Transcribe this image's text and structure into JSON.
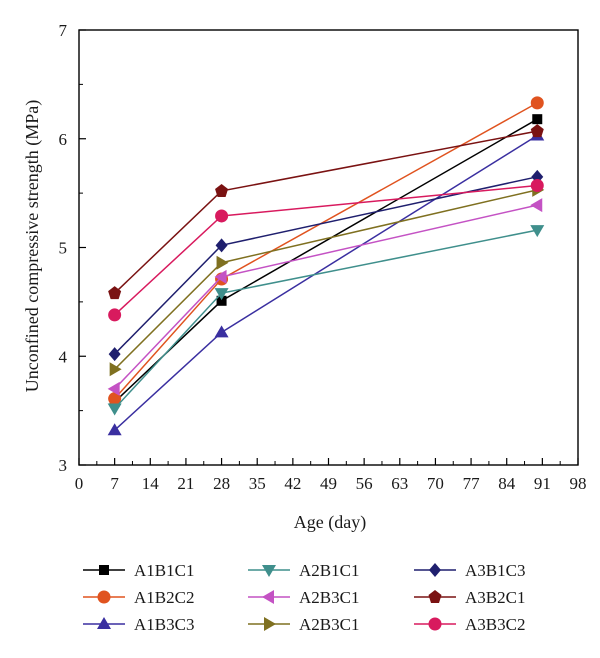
{
  "chart_data": {
    "type": "line",
    "title": "",
    "xlabel": "Age (day)",
    "ylabel": "Unconfined compressive strength (MPa)",
    "xlim": [
      0,
      98
    ],
    "ylim": [
      3,
      7
    ],
    "xticks": [
      0,
      7,
      14,
      21,
      28,
      35,
      42,
      49,
      56,
      63,
      70,
      77,
      84,
      91,
      98
    ],
    "yticks": [
      3,
      4,
      5,
      6,
      7
    ],
    "grid": false,
    "legend_position": "bottom",
    "x": [
      7,
      28,
      90
    ],
    "series": [
      {
        "name": "A1B1C1",
        "values": [
          3.58,
          4.51,
          6.18
        ],
        "color": "#000000",
        "marker": "square"
      },
      {
        "name": "A1B2C2",
        "values": [
          3.61,
          4.71,
          6.33
        ],
        "color": "#e0531f",
        "marker": "circle"
      },
      {
        "name": "A1B3C3",
        "values": [
          3.32,
          4.22,
          6.03
        ],
        "color": "#3a2fa0",
        "marker": "triangle-up"
      },
      {
        "name": "A2B1C1",
        "values": [
          3.52,
          4.58,
          5.16
        ],
        "color": "#3f8f8c",
        "marker": "triangle-down"
      },
      {
        "name": "A2B3C1",
        "values": [
          3.7,
          4.73,
          5.39
        ],
        "color": "#c452c4",
        "marker": "triangle-left"
      },
      {
        "name": "A2B3C1",
        "values": [
          3.88,
          4.86,
          5.53
        ],
        "color": "#7f7020",
        "marker": "triangle-right"
      },
      {
        "name": "A3B1C3",
        "values": [
          4.02,
          5.02,
          5.65
        ],
        "color": "#1f1f6e",
        "marker": "diamond"
      },
      {
        "name": "A3B2C1",
        "values": [
          4.58,
          5.52,
          6.07
        ],
        "color": "#7a1212",
        "marker": "pentagon"
      },
      {
        "name": "A3B3C2",
        "values": [
          4.38,
          5.29,
          5.57
        ],
        "color": "#d81a5e",
        "marker": "circle"
      }
    ]
  }
}
